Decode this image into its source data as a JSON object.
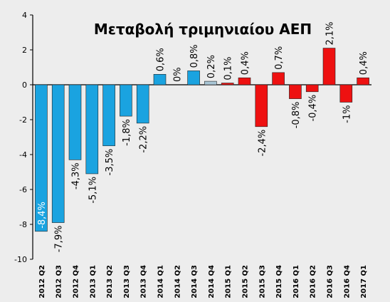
{
  "chart_data": {
    "type": "bar",
    "title": "Μεταβολή τριμηνιαίου ΑΕΠ",
    "xlabel": "",
    "ylabel": "",
    "ylim": [
      -10,
      4
    ],
    "yticks": [
      4,
      2,
      0,
      -2,
      -4,
      -6,
      -8,
      -10
    ],
    "grid": false,
    "legend": "none",
    "categories": [
      "2012 Q2",
      "2012 Q3",
      "2012 Q4",
      "2013 Q1",
      "2013 Q2",
      "2013 Q3",
      "2013 Q4",
      "2014 Q1",
      "2014 Q2",
      "2014 Q3",
      "2014 Q4",
      "2015 Q1",
      "2015 Q2",
      "2015 Q3",
      "2015 Q4",
      "2016 Q1",
      "2016 Q2",
      "2016 Q3",
      "2016 Q4",
      "2017 Q1"
    ],
    "values": [
      -8.4,
      -7.9,
      -4.3,
      -5.1,
      -3.5,
      -1.8,
      -2.2,
      0.6,
      0,
      0.8,
      0.2,
      0.1,
      0.4,
      -2.4,
      0.7,
      -0.8,
      -0.4,
      2.1,
      -1,
      0.4
    ],
    "data_labels": [
      "-8,4%",
      "-7,9%",
      "-4,3%",
      "-5,1%",
      "-3,5%",
      "-1,8%",
      "-2,2%",
      "0,6%",
      "0%",
      "0,8%",
      "0,2%",
      "0,1%",
      "0,4%",
      "-2,4%",
      "0,7%",
      "-0,8%",
      "-0,4%",
      "2,1%",
      "-1%",
      "0,4%"
    ],
    "bar_colors": [
      "#1aa3e0",
      "#1aa3e0",
      "#1aa3e0",
      "#1aa3e0",
      "#1aa3e0",
      "#1aa3e0",
      "#1aa3e0",
      "#1aa3e0",
      "#1aa3e0",
      "#1aa3e0",
      "#a9c6d6",
      "#ee1111",
      "#ee1111",
      "#ee1111",
      "#ee1111",
      "#ee1111",
      "#ee1111",
      "#ee1111",
      "#ee1111",
      "#ee1111"
    ],
    "colors": {
      "blue": "#1aa3e0",
      "grey": "#a9c6d6",
      "red": "#ee1111",
      "background": "#ededed"
    }
  }
}
